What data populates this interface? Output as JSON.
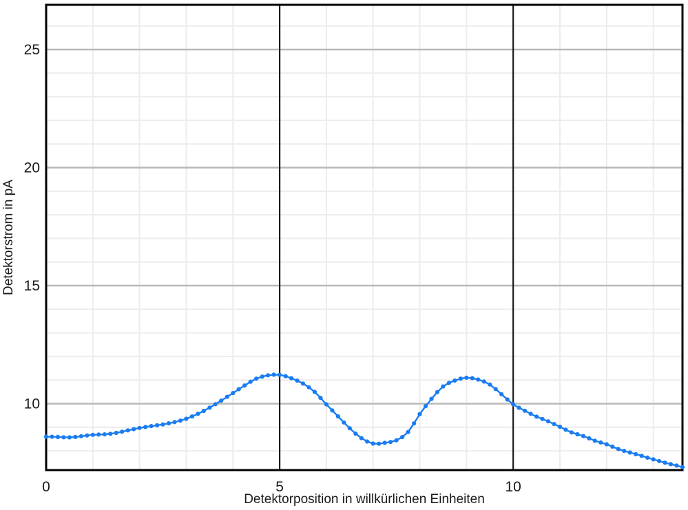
{
  "page": {
    "background": "#ffffff"
  },
  "chart_data": {
    "type": "line",
    "title": "",
    "xlabel": "Detektorposition in willkürlichen Einheiten",
    "ylabel": "Detektorstrom in pA",
    "x_range": [
      0,
      13.625
    ],
    "y_range": [
      7.2,
      26.9
    ],
    "x_ticks": [
      {
        "value": 0,
        "label": "0"
      },
      {
        "value": 5,
        "label": "5"
      },
      {
        "value": 10,
        "label": "10"
      }
    ],
    "y_ticks": [
      {
        "value": 10,
        "label": "10"
      },
      {
        "value": 15,
        "label": "15"
      },
      {
        "value": 20,
        "label": "20"
      },
      {
        "value": 25,
        "label": "25"
      }
    ],
    "minor_grid_step_x": 1,
    "minor_grid_step_y": 1,
    "grid": true,
    "legend": "none",
    "marker": "circle",
    "colors": {
      "series": "#1a7cf0",
      "major_grid_h": "#b8b8b8",
      "major_grid_v": "#1c1c1c",
      "minor_grid": "#ececec",
      "spine": "#000000",
      "text": "#1a1a1a"
    },
    "series": [
      {
        "name": "Detektorstrom",
        "x_start": 0,
        "x_step": 0.125,
        "x_end": 13.625,
        "anchors_x_step": 0.25,
        "anchors_y": [
          8.6,
          8.59,
          8.57,
          8.62,
          8.68,
          8.7,
          8.76,
          8.87,
          8.97,
          9.05,
          9.12,
          9.22,
          9.36,
          9.57,
          9.83,
          10.13,
          10.45,
          10.77,
          11.06,
          11.2,
          11.22,
          11.08,
          10.85,
          10.5,
          9.97,
          9.46,
          8.96,
          8.54,
          8.31,
          8.34,
          8.45,
          8.8,
          9.56,
          10.2,
          10.73,
          10.98,
          11.1,
          11.02,
          10.81,
          10.4,
          9.97,
          9.7,
          9.45,
          9.25,
          9.02,
          8.78,
          8.63,
          8.43,
          8.28,
          8.08,
          7.93,
          7.79,
          7.64,
          7.5,
          7.38,
          7.26
        ],
        "peak1": {
          "x": 4.9,
          "y": 11.25
        },
        "valley": {
          "x": 7.0,
          "y": 8.3
        },
        "peak2": {
          "x": 9.0,
          "y": 11.1
        }
      }
    ]
  }
}
